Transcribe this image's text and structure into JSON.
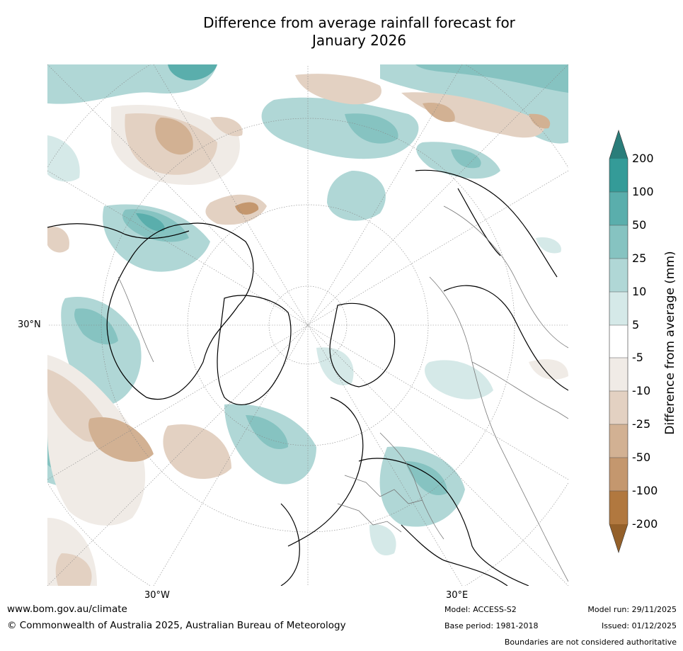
{
  "title": {
    "line1": "Difference from average rainfall forecast for",
    "line2": "January 2026"
  },
  "map": {
    "projection": "north-polar-stereographic",
    "lat_label": "30°N",
    "lon_labels": [
      "30°W",
      "30°E"
    ]
  },
  "colorbar": {
    "title": "Difference from average (mm)",
    "ticks": [
      "200",
      "100",
      "50",
      "25",
      "10",
      "5",
      "-5",
      "-10",
      "-25",
      "-50",
      "-100",
      "-200"
    ],
    "colors": {
      "above_200": "#2a7d7a",
      "100_200": "#349b98",
      "50_100": "#5aaeac",
      "25_50": "#86c3c1",
      "10_25": "#b0d7d6",
      "5_10": "#d5e9e8",
      "-5_5": "#ffffff",
      "-10_-5": "#f0ebe6",
      "-25_-10": "#e3d1c2",
      "-50_-25": "#d2b193",
      "-100_-50": "#c4976e",
      "-200_-100": "#b1783f",
      "below_-200": "#94602a"
    }
  },
  "footer": {
    "url": "www.bom.gov.au/climate",
    "copyright": "© Commonwealth of Australia 2025, Australian Bureau of Meteorology",
    "model": "Model: ACCESS-S2",
    "base_period": "Base period: 1981-2018",
    "model_run": "Model run: 29/11/2025",
    "issued": "Issued: 01/12/2025",
    "boundaries": "Boundaries are not considered authoritative"
  }
}
